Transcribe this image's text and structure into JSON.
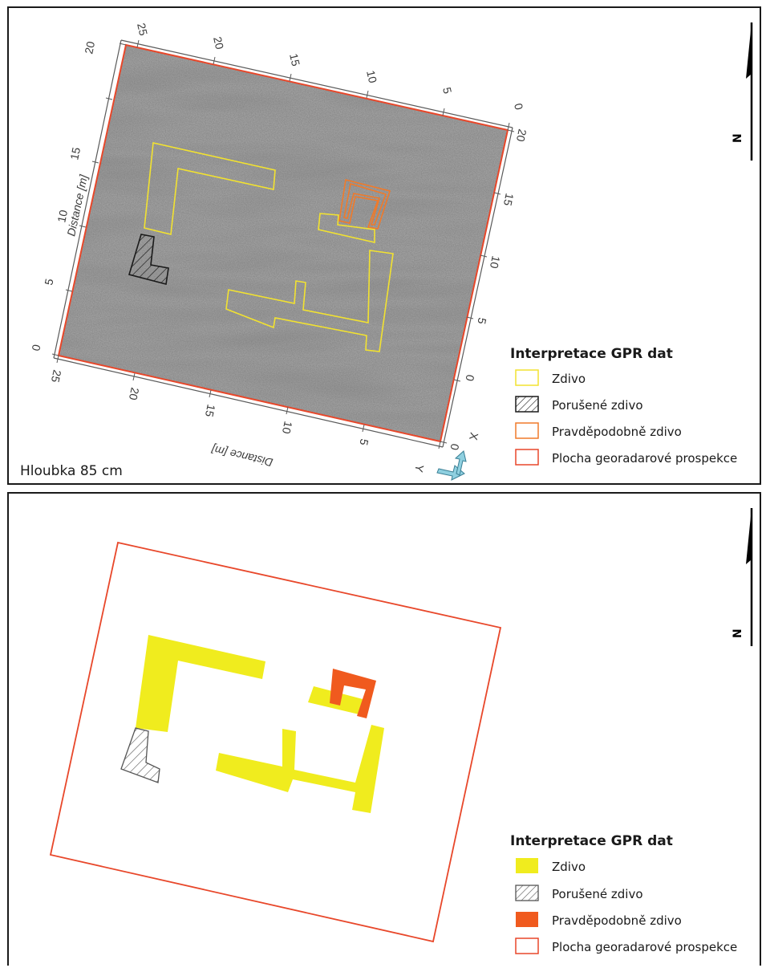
{
  "top_panel": {
    "depth_label": "Hloubka 85 cm",
    "axis_left_title": "Distance [m]",
    "axis_bottom_title": "Distance [m]",
    "ticks_left": [
      "0",
      "5",
      "10",
      "15",
      "20"
    ],
    "ticks_top": [
      "25",
      "20",
      "15",
      "10",
      "5",
      "0"
    ],
    "ticks_right": [
      "20",
      "15",
      "10",
      "5",
      "0"
    ],
    "ticks_bottom": [
      "25",
      "20",
      "15",
      "10",
      "5",
      "0"
    ],
    "axis_x_label": "X",
    "axis_y_label": "Y",
    "north_label": "N",
    "legend": {
      "title": "Interpretace GPR dat",
      "items": [
        {
          "label": "Zdivo",
          "color": "#f2e230",
          "style": "outline"
        },
        {
          "label": "Porušené zdivo",
          "color": "#1a1a1a",
          "style": "hatch"
        },
        {
          "label": "Pravděpodobně zdivo",
          "color": "#f07a2a",
          "style": "outline"
        },
        {
          "label": "Plocha georadarové prospekce",
          "color": "#e8472a",
          "style": "outline"
        }
      ]
    }
  },
  "bottom_panel": {
    "north_label": "N",
    "legend": {
      "title": "Interpretace GPR dat",
      "items": [
        {
          "label": "Zdivo",
          "color": "#f0ec1e",
          "style": "fill"
        },
        {
          "label": "Porušené zdivo",
          "color": "#555555",
          "style": "hatch"
        },
        {
          "label": "Pravděpodobně zdivo",
          "color": "#f05a1e",
          "style": "fill"
        },
        {
          "label": "Plocha georadarové prospekce",
          "color": "#e8472a",
          "style": "outline"
        }
      ]
    }
  }
}
